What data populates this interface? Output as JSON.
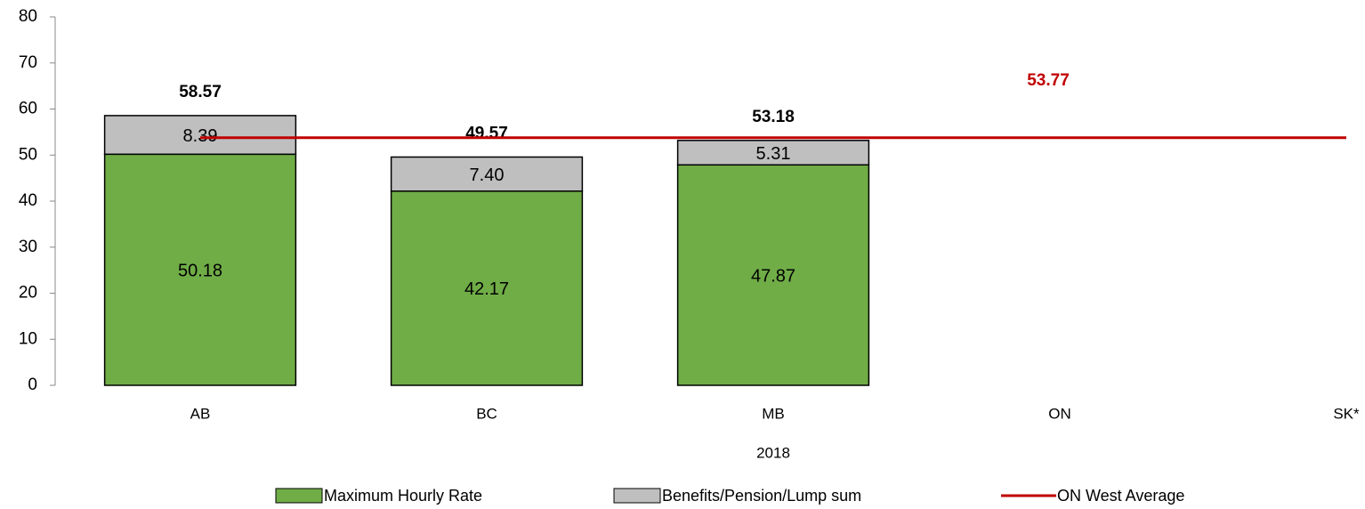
{
  "chart_data": {
    "type": "bar",
    "categories": [
      "AB",
      "BC",
      "MB",
      "ON",
      "SK*"
    ],
    "x_label": "2018",
    "series": [
      {
        "name": "Maximum Hourly Rate",
        "color": "#70ad47",
        "values": [
          50.18,
          42.17,
          47.87,
          null,
          null
        ]
      },
      {
        "name": "Benefits/Pension/Lump sum",
        "color": "#bfbfbf",
        "values": [
          8.39,
          7.4,
          5.31,
          null,
          null
        ],
        "value_labels": [
          "8.39",
          "7.40",
          "5.31",
          null,
          null
        ]
      },
      {
        "name": "ON West Average",
        "type": "line",
        "color": "#c00000",
        "values": [
          53.77,
          53.77,
          53.77,
          53.77,
          53.77
        ],
        "value_labels": [
          null,
          null,
          null,
          "53.77",
          null
        ]
      }
    ],
    "totals": [
      58.57,
      49.57,
      53.18,
      null,
      null
    ],
    "stacked": true,
    "ylim": [
      0,
      80
    ],
    "yticks": [
      0,
      10,
      20,
      30,
      40,
      50,
      60,
      70,
      80
    ],
    "grid": false,
    "legend": "bottom"
  }
}
